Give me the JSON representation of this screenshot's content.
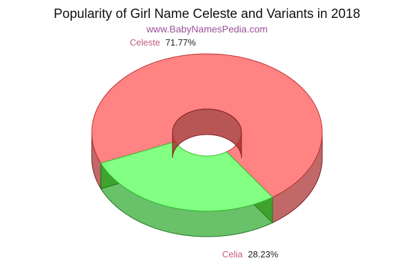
{
  "chart_data": {
    "type": "pie",
    "variant": "3d-donut",
    "title": "Popularity of Girl Name Celeste and Variants in 2018",
    "subtitle": "www.BabyNamesPedia.com",
    "slices": [
      {
        "name": "Celeste",
        "value": 71.77,
        "label": "71.77%",
        "color": "#ff4040"
      },
      {
        "name": "Celia",
        "value": 28.23,
        "label": "28.23%",
        "color": "#40ff40"
      }
    ]
  }
}
